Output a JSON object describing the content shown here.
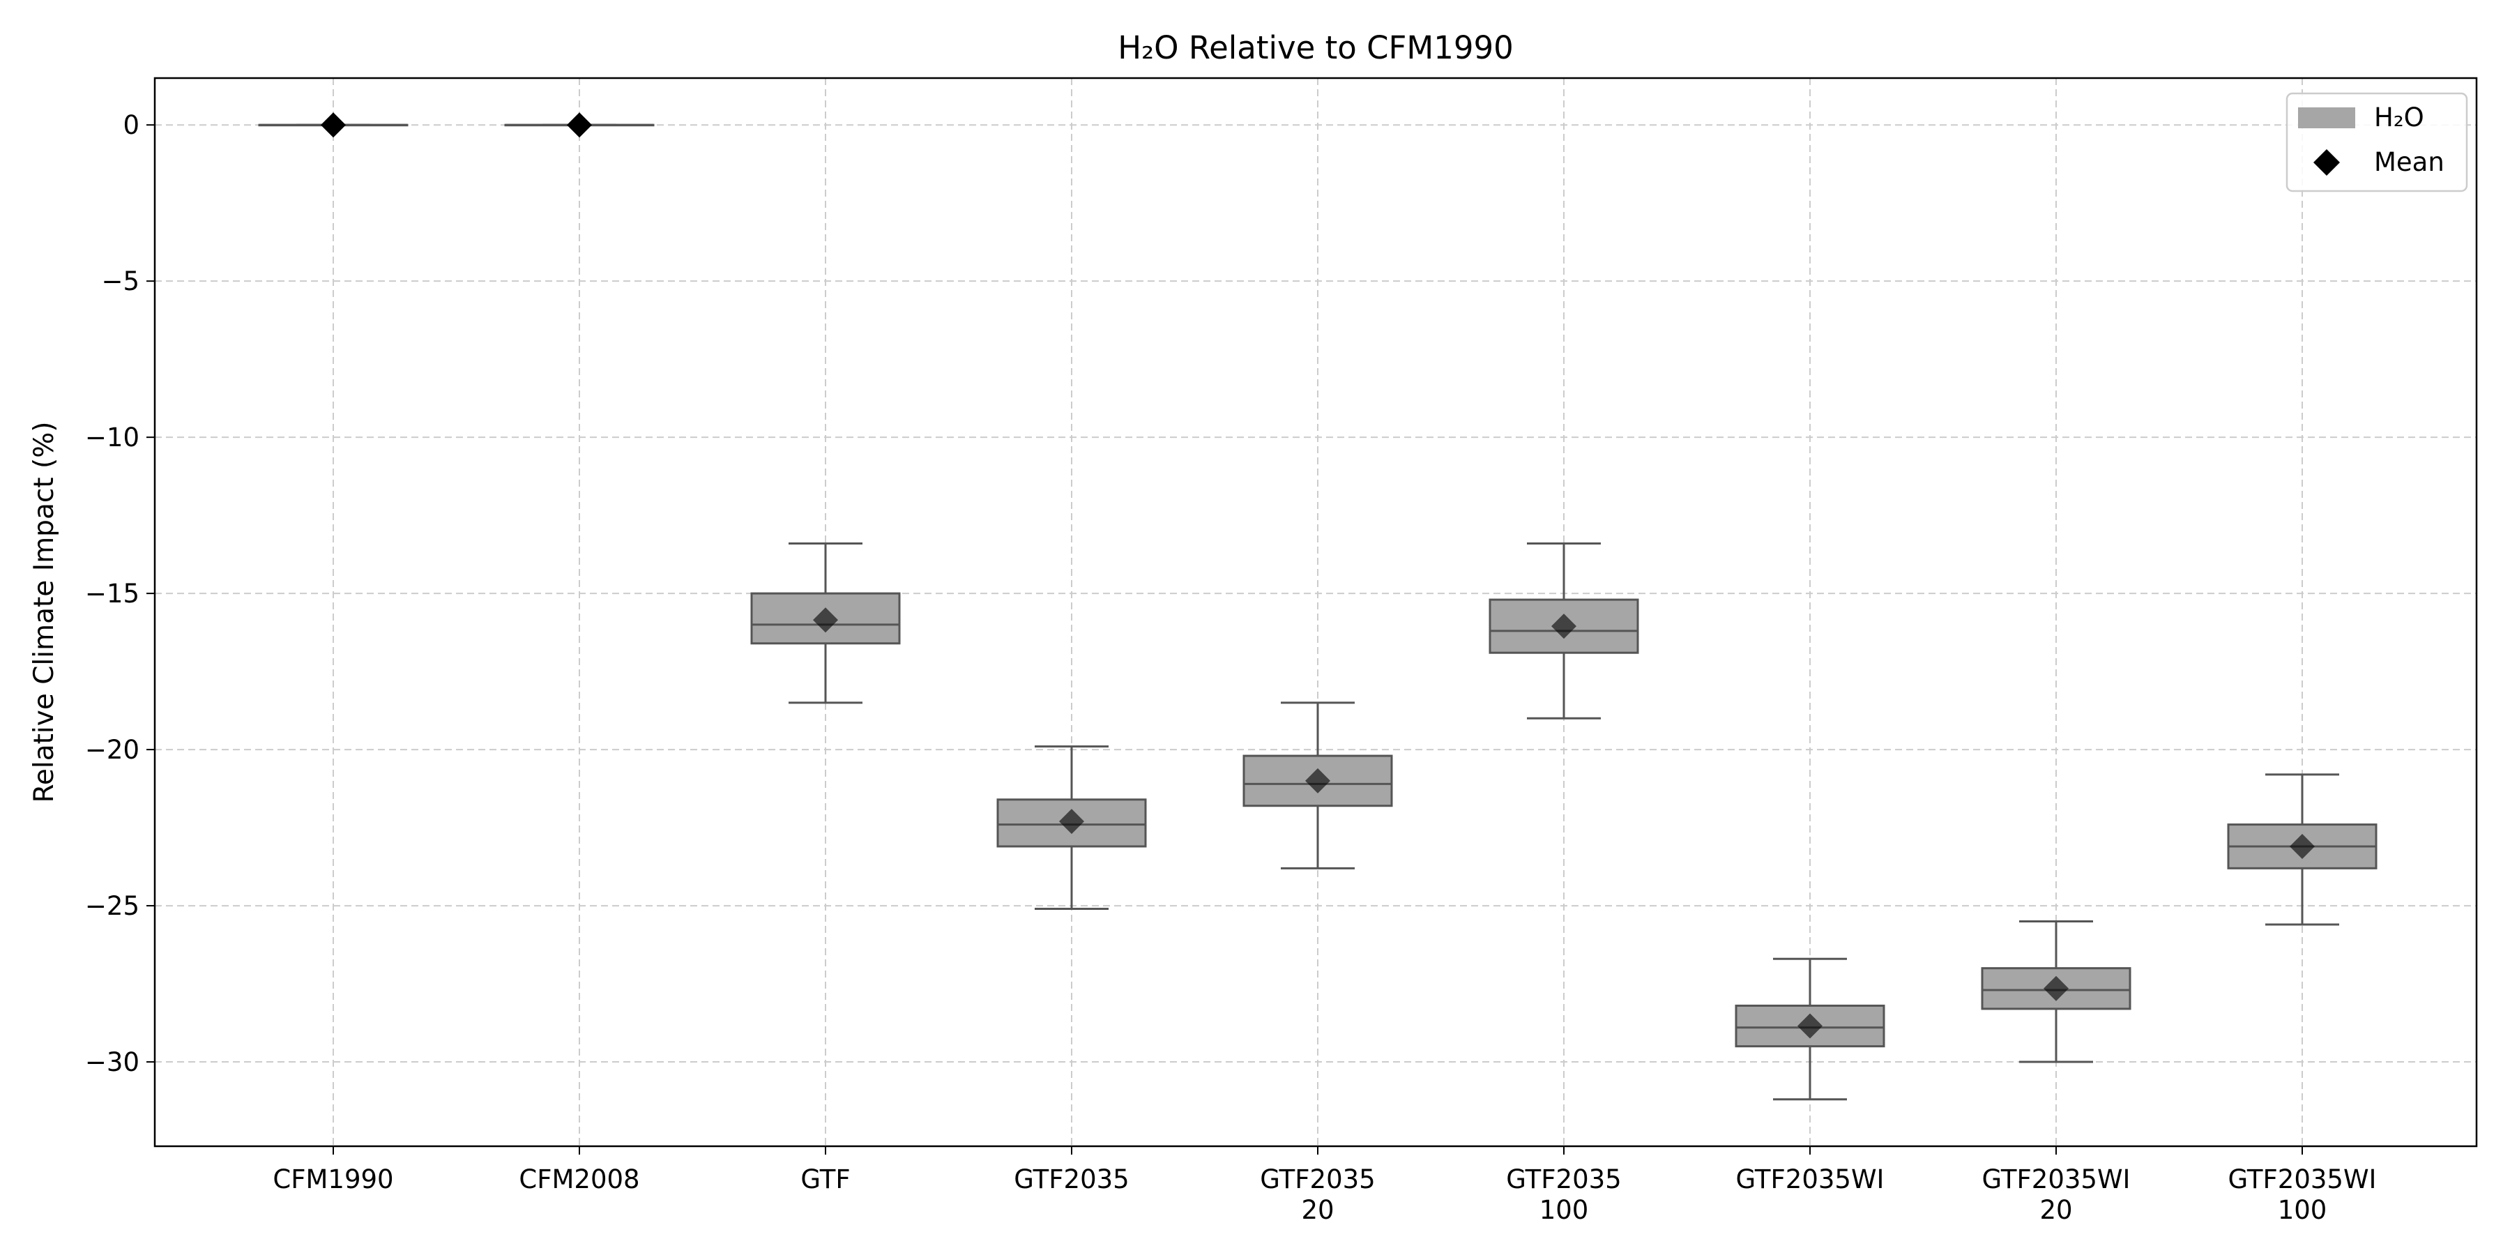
{
  "chart_data": {
    "type": "box",
    "title": "H₂O Relative to CFM1990",
    "xlabel": "",
    "ylabel": "Relative Climate Impact (%)",
    "ylim": [
      -32.7,
      1.5
    ],
    "yticks": [
      0,
      -5,
      -10,
      -15,
      -20,
      -25,
      -30
    ],
    "ytick_labels": [
      "0",
      "−5",
      "−10",
      "−15",
      "−20",
      "−25",
      "−30"
    ],
    "grid": true,
    "legend": {
      "placement": "top-right",
      "entries": [
        {
          "label": "H₂O",
          "marker": "patch"
        },
        {
          "label": "Mean",
          "marker": "diamond"
        }
      ]
    },
    "colors": {
      "box_fill": "#a6a6a6",
      "box_edge": "#555555",
      "mean": "#000000",
      "grid": "#cccccc"
    },
    "categories": [
      {
        "label": [
          "CFM1990"
        ],
        "whisker_low": 0,
        "q1": 0,
        "median": 0,
        "q3": 0,
        "whisker_high": 0,
        "mean": 0
      },
      {
        "label": [
          "CFM2008"
        ],
        "whisker_low": 0,
        "q1": 0,
        "median": 0,
        "q3": 0,
        "whisker_high": 0,
        "mean": 0
      },
      {
        "label": [
          "GTF"
        ],
        "whisker_low": -18.5,
        "q1": -16.6,
        "median": -16.0,
        "q3": -15.0,
        "whisker_high": -13.4,
        "mean": -15.85
      },
      {
        "label": [
          "GTF2035"
        ],
        "whisker_low": -25.1,
        "q1": -23.1,
        "median": -22.4,
        "q3": -21.6,
        "whisker_high": -19.9,
        "mean": -22.3
      },
      {
        "label": [
          "GTF2035",
          "20"
        ],
        "whisker_low": -23.8,
        "q1": -21.8,
        "median": -21.1,
        "q3": -20.2,
        "whisker_high": -18.5,
        "mean": -21.0
      },
      {
        "label": [
          "GTF2035",
          "100"
        ],
        "whisker_low": -19.0,
        "q1": -16.9,
        "median": -16.2,
        "q3": -15.2,
        "whisker_high": -13.4,
        "mean": -16.05
      },
      {
        "label": [
          "GTF2035WI"
        ],
        "whisker_low": -31.2,
        "q1": -29.5,
        "median": -28.9,
        "q3": -28.2,
        "whisker_high": -26.7,
        "mean": -28.85
      },
      {
        "label": [
          "GTF2035WI",
          "20"
        ],
        "whisker_low": -30.0,
        "q1": -28.3,
        "median": -27.7,
        "q3": -27.0,
        "whisker_high": -25.5,
        "mean": -27.65
      },
      {
        "label": [
          "GTF2035WI",
          "100"
        ],
        "whisker_low": -25.6,
        "q1": -23.8,
        "median": -23.1,
        "q3": -22.4,
        "whisker_high": -20.8,
        "mean": -23.1
      }
    ]
  }
}
